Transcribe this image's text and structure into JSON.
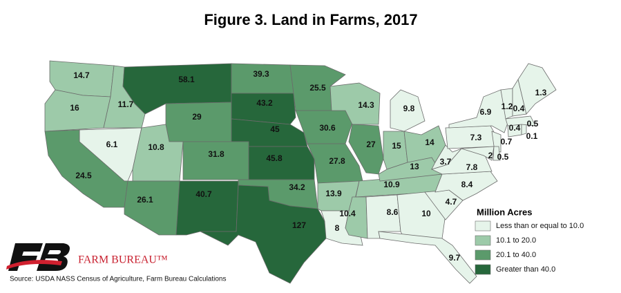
{
  "title": "Figure 3. Land in Farms, 2017",
  "legend": {
    "title": "Million Acres",
    "items": [
      {
        "label": "Less than or equal to 10.0",
        "color": "#e6f4ea"
      },
      {
        "label": "10.1 to 20.0",
        "color": "#9dcaa9"
      },
      {
        "label": "20.1 to 40.0",
        "color": "#5b9a6b"
      },
      {
        "label": "Greater than 40.0",
        "color": "#26673b"
      }
    ]
  },
  "states": [
    {
      "value": 14.7,
      "color": "#9dcaa9"
    },
    {
      "value": 16,
      "color": "#9dcaa9"
    },
    {
      "value": 11.7,
      "color": "#9dcaa9"
    },
    {
      "value": 58.1,
      "color": "#26673b"
    },
    {
      "value": 29,
      "color": "#5b9a6b"
    },
    {
      "value": 39.3,
      "color": "#5b9a6b"
    },
    {
      "value": 43.2,
      "color": "#26673b"
    },
    {
      "value": 45,
      "color": "#26673b"
    },
    {
      "value": 25.5,
      "color": "#5b9a6b"
    },
    {
      "value": 30.6,
      "color": "#5b9a6b"
    },
    {
      "value": 14.3,
      "color": "#9dcaa9"
    },
    {
      "value": 27,
      "color": "#5b9a6b"
    },
    {
      "value": 15,
      "color": "#9dcaa9"
    },
    {
      "value": 14,
      "color": "#9dcaa9"
    },
    {
      "value": 9.8,
      "color": "#e6f4ea"
    },
    {
      "value": 6.1,
      "color": "#e6f4ea"
    },
    {
      "value": 24.5,
      "color": "#5b9a6b"
    },
    {
      "value": 10.8,
      "color": "#9dcaa9"
    },
    {
      "value": 26.1,
      "color": "#5b9a6b"
    },
    {
      "value": 31.8,
      "color": "#5b9a6b"
    },
    {
      "value": 40.7,
      "color": "#26673b"
    },
    {
      "value": 45.8,
      "color": "#26673b"
    },
    {
      "value": 34.2,
      "color": "#5b9a6b"
    },
    {
      "value": 127,
      "color": "#26673b"
    },
    {
      "value": 27.8,
      "color": "#5b9a6b"
    },
    {
      "value": 13.9,
      "color": "#9dcaa9"
    },
    {
      "value": 8,
      "color": "#e6f4ea"
    },
    {
      "value": 10.4,
      "color": "#9dcaa9"
    },
    {
      "value": 8.6,
      "color": "#e6f4ea"
    },
    {
      "value": 10.9,
      "color": "#9dcaa9"
    },
    {
      "value": 13,
      "color": "#9dcaa9"
    },
    {
      "value": 10,
      "color": "#e6f4ea"
    },
    {
      "value": 9.7,
      "color": "#e6f4ea"
    },
    {
      "value": 4.7,
      "color": "#e6f4ea"
    },
    {
      "value": 8.4,
      "color": "#e6f4ea"
    },
    {
      "value": 7.8,
      "color": "#e6f4ea"
    },
    {
      "value": 3.7,
      "color": "#e6f4ea"
    },
    {
      "value": 7.3,
      "color": "#e6f4ea"
    },
    {
      "value": 6.9,
      "color": "#e6f4ea"
    },
    {
      "value": 0.7,
      "color": "#e6f4ea"
    },
    {
      "value": 2,
      "color": "#e6f4ea"
    },
    {
      "value": 0.5,
      "color": "#e6f4ea"
    },
    {
      "value": 0.4,
      "color": "#e6f4ea"
    },
    {
      "value": 0.1,
      "color": "#e6f4ea"
    },
    {
      "value": 0.5,
      "color": "#e6f4ea"
    },
    {
      "value": 1.2,
      "color": "#e6f4ea"
    },
    {
      "value": 0.4,
      "color": "#e6f4ea"
    },
    {
      "value": 1.3,
      "color": "#e6f4ea"
    }
  ],
  "logo": "FARM BUREAU™",
  "source": "Source: USDA NASS Census of Agriculture, Farm Bureau Calculations"
}
